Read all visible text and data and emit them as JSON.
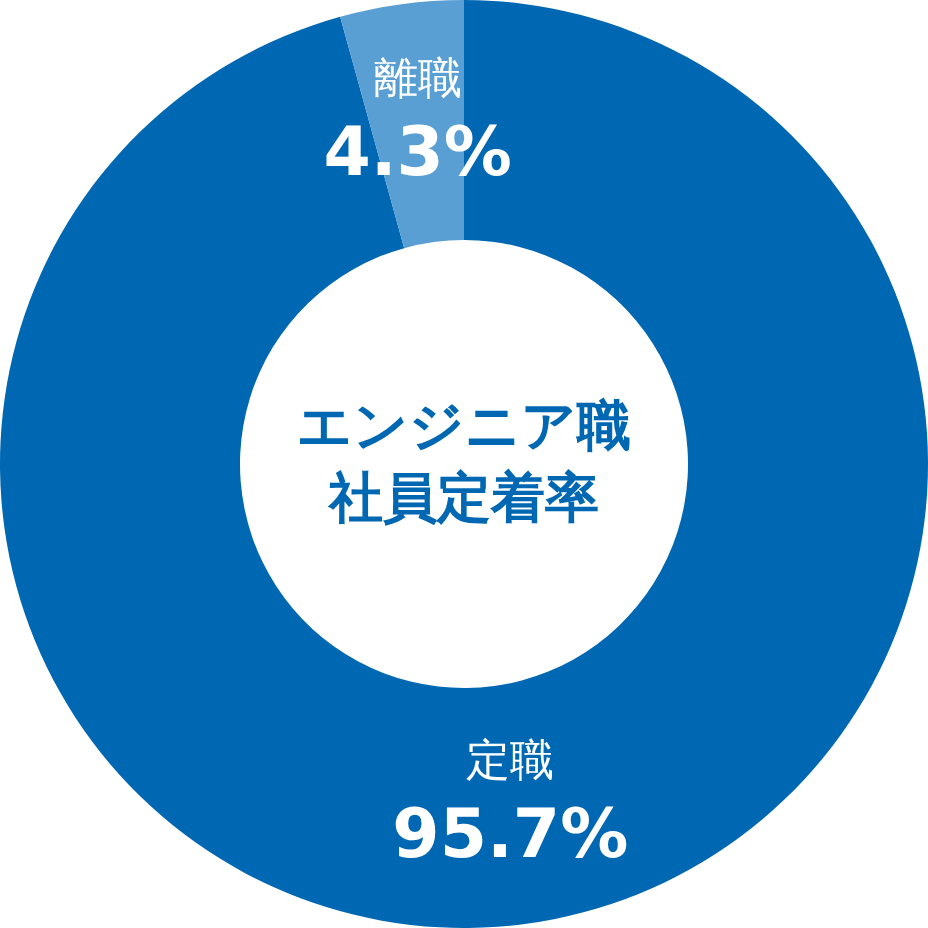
{
  "chart_data": {
    "type": "donut",
    "title": "エンジニア職社員定着率",
    "categories": [
      "定職",
      "離職"
    ],
    "values": [
      95.7,
      4.3
    ],
    "colors": [
      "#0068b3",
      "#5a9fd4"
    ],
    "value_labels": [
      "95.7%",
      "4.3%"
    ]
  }
}
